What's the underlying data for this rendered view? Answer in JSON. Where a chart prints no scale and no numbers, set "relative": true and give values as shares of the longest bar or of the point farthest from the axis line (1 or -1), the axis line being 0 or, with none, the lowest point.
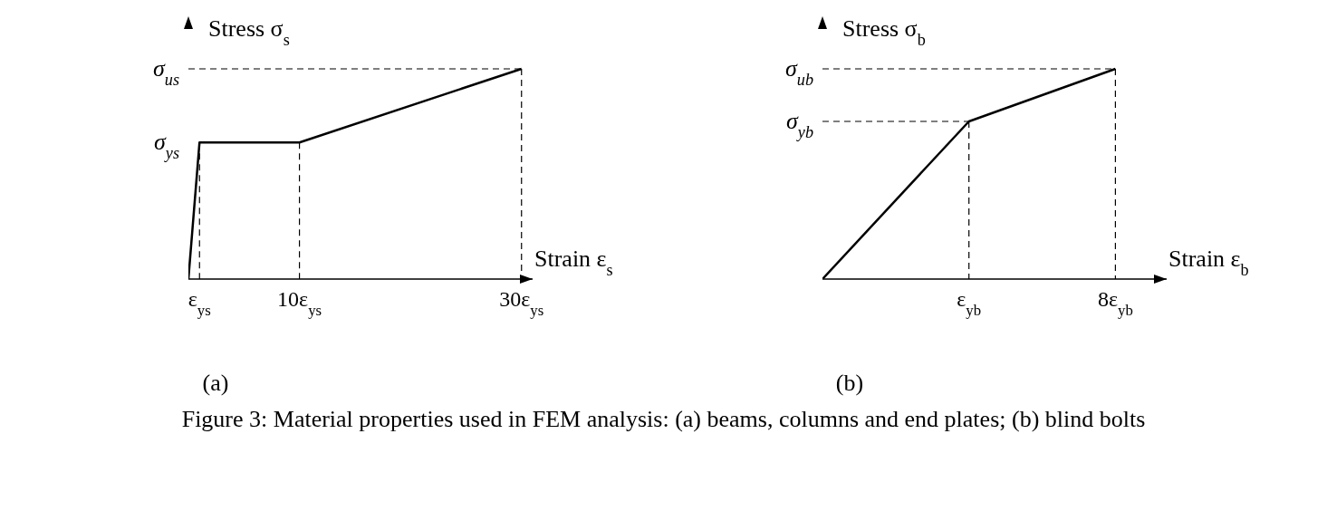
{
  "chart_data": [
    {
      "type": "line",
      "title": "(a)",
      "xlabel": "Strain ε$_{s}$",
      "ylabel": "Stress σ$_{s}$",
      "relative": true,
      "xlim": [
        0,
        31
      ],
      "xticks": [
        {
          "value": 1,
          "label": "ε$_{ys}$"
        },
        {
          "value": 10,
          "label": "10ε$_{ys}$"
        },
        {
          "value": 30,
          "label": "30ε$_{ys}$"
        }
      ],
      "marker": "none",
      "line_style": "solid",
      "series": [
        {
          "color": "#000000",
          "x": [
            0,
            1,
            10,
            30
          ],
          "values": [
            0,
            0.65,
            0.65,
            1
          ]
        },
        {
          "name": "σ$_{ys}$",
          "color": "#000000",
          "x": [
            1,
            1
          ],
          "values": [
            0.65,
            0
          ],
          "line_style": "dashed"
        },
        {
          "color": "#000000",
          "x": [
            10,
            10
          ],
          "values": [
            0.65,
            0
          ],
          "line_style": "dashed"
        },
        {
          "name": "σ$_{us}$",
          "color": "#000000",
          "x": [
            0,
            30
          ],
          "values": [
            1,
            1
          ],
          "line_style": "dashed"
        },
        {
          "color": "#000000",
          "x": [
            30,
            30
          ],
          "values": [
            1,
            0
          ],
          "line_style": "dashed"
        }
      ]
    },
    {
      "type": "line",
      "title": "(b)",
      "xlabel": "Strain ε$_{b}$",
      "ylabel": "Stress σ$_{b}$",
      "relative": true,
      "categories": [
        null,
        "ε$_{yb}$",
        "8ε$_{yb}$"
      ],
      "marker": "none",
      "line_style": "solid",
      "series": [
        {
          "color": "#000000",
          "values": [
            0,
            0.75,
            1
          ]
        },
        {
          "name": "σ$_{yb}$",
          "color": "#000000",
          "values": [
            0.75,
            0.75,
            null
          ],
          "line_style": "dashed"
        },
        {
          "color": "#000000",
          "x": [
            "ε$_{yb}$",
            "ε$_{yb}$"
          ],
          "values": [
            0.75,
            0
          ],
          "line_style": "dashed"
        },
        {
          "name": "σ$_{ub}$",
          "color": "#000000",
          "values": [
            1,
            1,
            1
          ],
          "line_style": "dashed"
        },
        {
          "color": "#000000",
          "x": [
            "8ε$_{yb}$",
            "8ε$_{yb}$"
          ],
          "values": [
            1,
            0
          ],
          "line_style": "dashed"
        }
      ],
      "annotations": [
        "Figure 3: Material properties used in FEM analysis: (a) beams, columns and end plates; (b) blind bolts"
      ]
    }
  ]
}
